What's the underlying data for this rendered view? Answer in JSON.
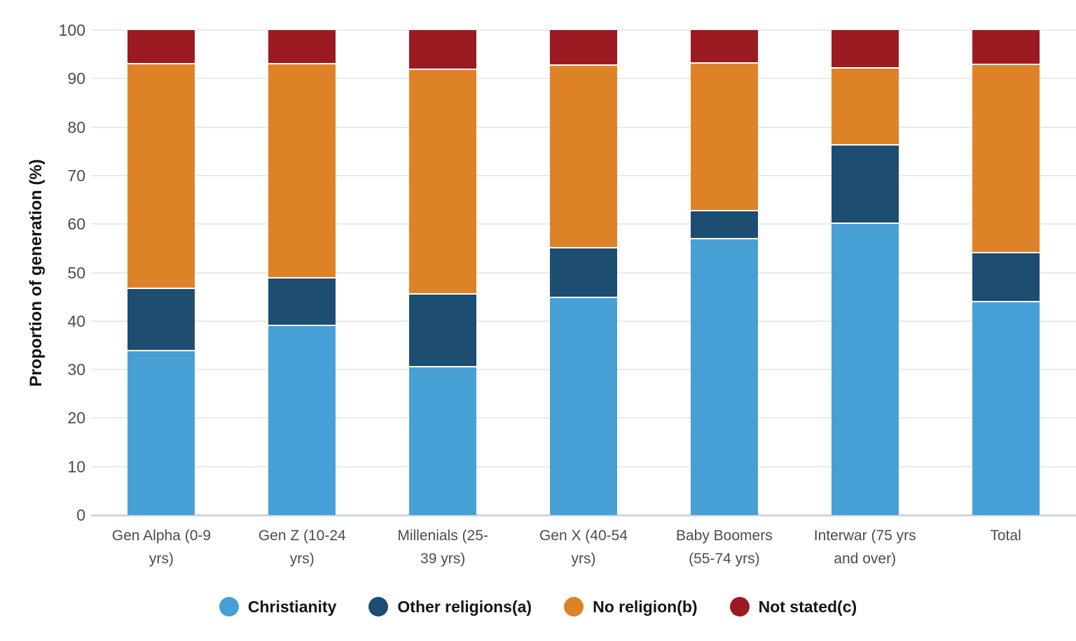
{
  "chart_data": {
    "type": "bar",
    "stacked": true,
    "title": "",
    "xlabel": "",
    "ylabel": "Proportion of generation (%)",
    "ylim": [
      0,
      100
    ],
    "yticks": [
      0,
      10,
      20,
      30,
      40,
      50,
      60,
      70,
      80,
      90,
      100
    ],
    "grid": true,
    "legend_position": "bottom",
    "categories": [
      "Gen Alpha (0-9 yrs)",
      "Gen Z (10-24 yrs)",
      "Millenials (25-39 yrs)",
      "Gen X (40-54 yrs)",
      "Baby Boomers (55-74 yrs)",
      "Interwar (75 yrs and over)",
      "Total"
    ],
    "category_label_lines": [
      [
        "Gen Alpha (0-9",
        "yrs)"
      ],
      [
        "Gen Z (10-24",
        "yrs)"
      ],
      [
        "Millenials (25-",
        "39 yrs)"
      ],
      [
        "Gen X (40-54",
        "yrs)"
      ],
      [
        "Baby Boomers",
        "(55-74 yrs)"
      ],
      [
        "Interwar (75 yrs",
        "and over)"
      ],
      [
        "Total"
      ]
    ],
    "series": [
      {
        "name": "Christianity",
        "color": "#47a0d5",
        "values": [
          33.7,
          38.9,
          30.4,
          44.8,
          56.8,
          60.1,
          43.9
        ]
      },
      {
        "name": "Other religions(a)",
        "color": "#1d4d70",
        "values": [
          12.9,
          9.9,
          15.0,
          10.2,
          5.8,
          16.1,
          10.0
        ]
      },
      {
        "name": "No religion(b)",
        "color": "#de8227",
        "values": [
          46.3,
          44.1,
          46.4,
          37.6,
          30.5,
          15.9,
          38.9
        ]
      },
      {
        "name": "Not stated(c)",
        "color": "#9c1b22",
        "values": [
          7.1,
          7.1,
          8.2,
          7.4,
          6.9,
          7.9,
          7.2
        ]
      }
    ],
    "style": {
      "gridline_color": "#e9e9e9",
      "zero_line_color": "#ccd6e4",
      "tick_label_color": "#4c4c4c",
      "axis_title_color": "#161616",
      "legend_text_color": "#141414",
      "background": "#ffffff"
    }
  }
}
